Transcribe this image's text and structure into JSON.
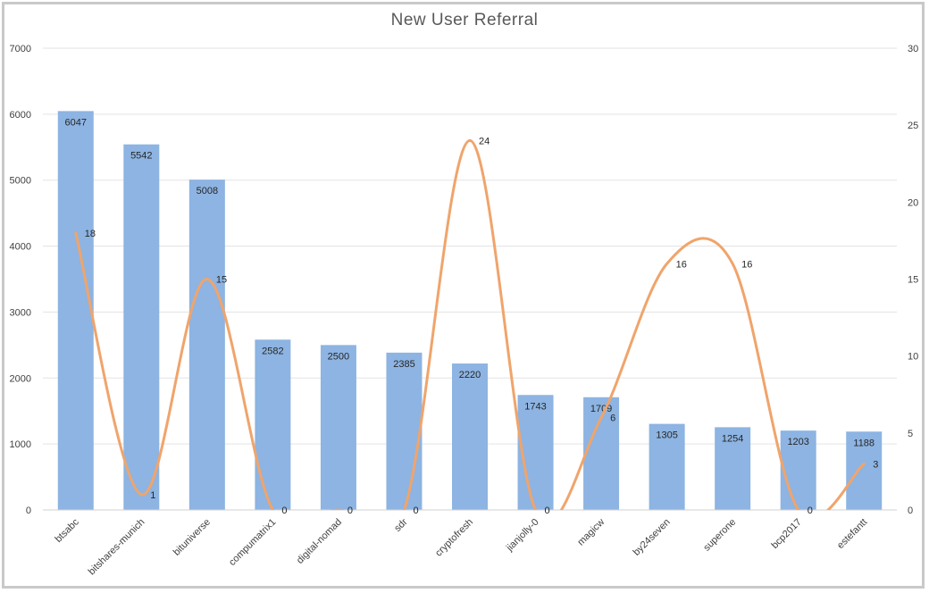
{
  "chart_data": {
    "type": "bar",
    "title": "New User Referral",
    "categories": [
      "btsabc",
      "bitshares-munich",
      "bituniverse",
      "compumatrix1",
      "digital-nomad",
      "sdr",
      "cryptofresh",
      "jianjolly-0",
      "magicw",
      "by24seven",
      "superone",
      "bcp2017",
      "estefantt"
    ],
    "series": [
      {
        "type": "bar",
        "axis": "left",
        "color": "#8db4e2",
        "values": [
          6047,
          5542,
          5008,
          2582,
          2500,
          2385,
          2220,
          1743,
          1709,
          1305,
          1254,
          1203,
          1188
        ]
      },
      {
        "type": "line",
        "axis": "right",
        "color": "#f0a46b",
        "smooth": true,
        "values": [
          18,
          1,
          15,
          0,
          0,
          0,
          24,
          0,
          6,
          16,
          16,
          0,
          3
        ]
      }
    ],
    "ylim_left": [
      0,
      7000
    ],
    "yticks_left": [
      0,
      1000,
      2000,
      3000,
      4000,
      5000,
      6000,
      7000
    ],
    "ylim_right": [
      0,
      30
    ],
    "yticks_right": [
      0,
      5,
      10,
      15,
      20,
      25,
      30
    ],
    "grid": true,
    "legend": "none"
  }
}
